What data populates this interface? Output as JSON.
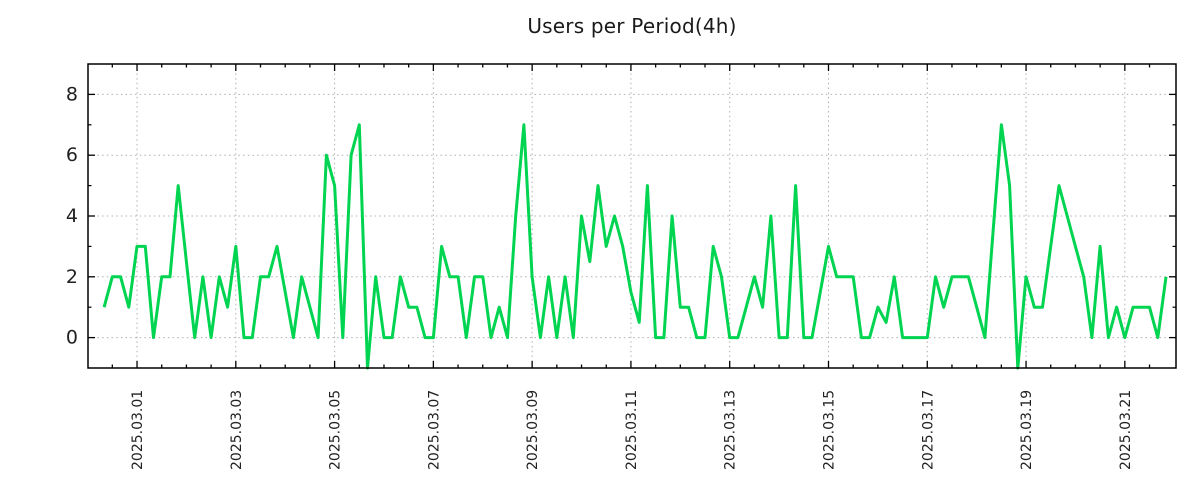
{
  "title": "Users per Period(4h)",
  "chart_data": {
    "type": "line",
    "title": "Users per Period(4h)",
    "xlabel": "",
    "ylabel": "",
    "x_start": "2025-02-28 08:00",
    "x_step_hours": 4,
    "x_tick_labels": [
      "2025.03.01",
      "2025.03.03",
      "2025.03.05",
      "2025.03.07",
      "2025.03.09",
      "2025.03.11",
      "2025.03.13",
      "2025.03.15",
      "2025.03.17",
      "2025.03.19",
      "2025.03.21"
    ],
    "y_ticks": [
      0,
      2,
      4,
      6,
      8
    ],
    "y_tick_labels": [
      "0",
      "2",
      "4",
      "6",
      "8"
    ],
    "y_minor_ticks": [
      1,
      3,
      5,
      7
    ],
    "ylim": [
      -1,
      9
    ],
    "grid": true,
    "legend": "none",
    "series": [
      {
        "name": "users",
        "color": "#00d450",
        "values": [
          1,
          2,
          2,
          1,
          3,
          3,
          0,
          2,
          2,
          5,
          2.5,
          0,
          2,
          0,
          2,
          1,
          3,
          0,
          0,
          2,
          2,
          3,
          1.5,
          0,
          2,
          1,
          0,
          6,
          5,
          0,
          6,
          7,
          -1,
          2,
          0,
          0,
          2,
          1,
          1,
          0,
          0,
          3,
          2,
          2,
          0,
          2,
          2,
          0,
          1,
          0,
          4,
          7,
          2,
          0,
          2,
          0,
          2,
          0,
          4,
          2.5,
          5,
          3,
          4,
          3,
          1.5,
          0.5,
          5,
          0,
          0,
          4,
          1,
          1,
          0,
          0,
          3,
          2,
          0,
          0,
          1,
          2,
          1,
          4,
          0,
          0,
          5,
          0,
          0,
          1.5,
          3,
          2,
          2,
          2,
          0,
          0,
          1,
          0.5,
          2,
          0,
          0,
          0,
          0,
          2,
          1,
          2,
          2,
          2,
          1,
          0,
          3.5,
          7,
          5,
          -1,
          2,
          1,
          1,
          3,
          5,
          4,
          3,
          2,
          0,
          3,
          0,
          1,
          0,
          1,
          1,
          1,
          0,
          2
        ]
      }
    ]
  },
  "style": {
    "background": "#ffffff",
    "plot_border_color": "#000000",
    "grid_color": "#b0b0b0",
    "tick_color": "#000000",
    "text_color": "#222222",
    "line_color": "#00d450"
  }
}
